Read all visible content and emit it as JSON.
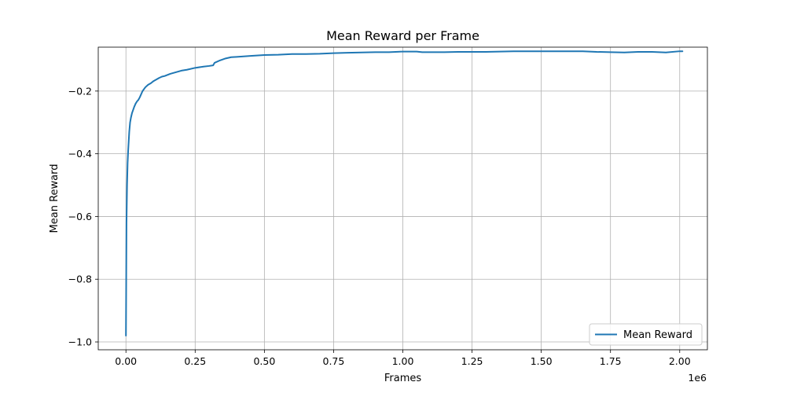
{
  "chart_data": {
    "type": "line",
    "title": "Mean Reward per Frame",
    "xlabel": "Frames",
    "ylabel": "Mean Reward",
    "x_scale_label": "1e6",
    "xlim": [
      -0.1,
      2.1
    ],
    "ylim": [
      -1.025,
      -0.06
    ],
    "x_ticks": [
      0.0,
      0.25,
      0.5,
      0.75,
      1.0,
      1.25,
      1.5,
      1.75,
      2.0
    ],
    "x_tick_labels": [
      "0.00",
      "0.25",
      "0.50",
      "0.75",
      "1.00",
      "1.25",
      "1.50",
      "1.75",
      "2.00"
    ],
    "y_ticks": [
      -1.0,
      -0.8,
      -0.6,
      -0.4,
      -0.2
    ],
    "y_tick_labels": [
      "−1.0",
      "−0.8",
      "−0.6",
      "−0.4",
      "−0.2"
    ],
    "grid": true,
    "legend_position": "bottom-right",
    "series": [
      {
        "name": "Mean Reward",
        "color": "#1f77b4",
        "x": [
          0.0,
          0.002,
          0.004,
          0.006,
          0.008,
          0.01,
          0.012,
          0.015,
          0.018,
          0.022,
          0.026,
          0.03,
          0.035,
          0.04,
          0.045,
          0.05,
          0.06,
          0.07,
          0.08,
          0.09,
          0.1,
          0.12,
          0.13,
          0.14,
          0.16,
          0.18,
          0.2,
          0.22,
          0.25,
          0.28,
          0.3,
          0.315,
          0.32,
          0.34,
          0.36,
          0.38,
          0.4,
          0.45,
          0.5,
          0.55,
          0.6,
          0.65,
          0.7,
          0.75,
          0.8,
          0.85,
          0.9,
          0.95,
          1.0,
          1.05,
          1.07,
          1.1,
          1.15,
          1.2,
          1.25,
          1.3,
          1.35,
          1.4,
          1.45,
          1.5,
          1.55,
          1.6,
          1.65,
          1.7,
          1.75,
          1.8,
          1.85,
          1.9,
          1.95,
          2.0,
          2.01
        ],
        "values": [
          -0.98,
          -0.62,
          -0.5,
          -0.43,
          -0.39,
          -0.36,
          -0.33,
          -0.3,
          -0.285,
          -0.27,
          -0.26,
          -0.25,
          -0.24,
          -0.233,
          -0.228,
          -0.22,
          -0.2,
          -0.188,
          -0.18,
          -0.175,
          -0.168,
          -0.158,
          -0.154,
          -0.152,
          -0.145,
          -0.14,
          -0.135,
          -0.132,
          -0.126,
          -0.122,
          -0.12,
          -0.118,
          -0.11,
          -0.102,
          -0.096,
          -0.092,
          -0.091,
          -0.088,
          -0.085,
          -0.084,
          -0.082,
          -0.082,
          -0.081,
          -0.079,
          -0.078,
          -0.077,
          -0.076,
          -0.076,
          -0.074,
          -0.074,
          -0.076,
          -0.076,
          -0.076,
          -0.075,
          -0.075,
          -0.075,
          -0.074,
          -0.073,
          -0.073,
          -0.073,
          -0.073,
          -0.073,
          -0.073,
          -0.075,
          -0.076,
          -0.077,
          -0.075,
          -0.075,
          -0.077,
          -0.073,
          -0.073
        ]
      }
    ]
  }
}
